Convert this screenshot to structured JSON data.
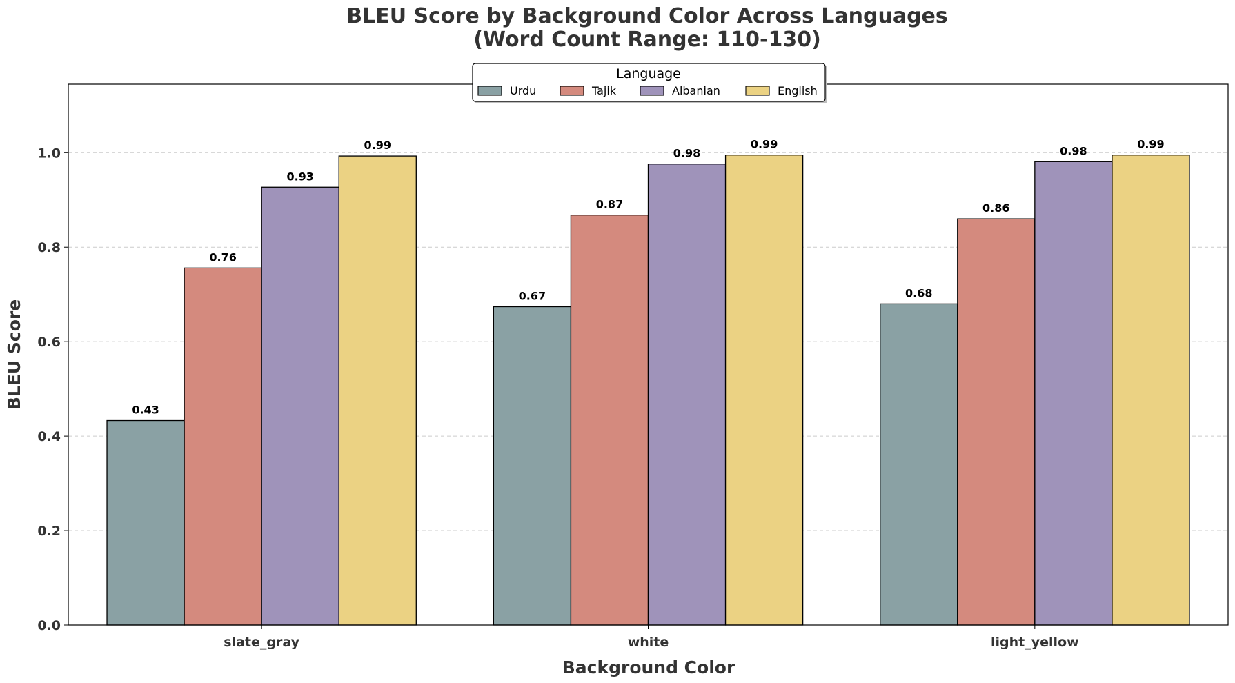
{
  "chart_data": {
    "type": "bar",
    "title_lines": [
      "BLEU Score by Background Color Across Languages",
      "(Word Count Range: 110-130)"
    ],
    "xlabel": "Background Color",
    "ylabel": "BLEU Score",
    "categories": [
      "slate_gray",
      "white",
      "light_yellow"
    ],
    "ylim": [
      0,
      1.145
    ],
    "yticks": [
      "0.0",
      "0.2",
      "0.4",
      "0.6",
      "0.8",
      "1.0"
    ],
    "grid": true,
    "legend": {
      "title": "Language",
      "placement": "top-center",
      "columns": 4
    },
    "series": [
      {
        "name": "Urdu",
        "color": "#8aa1a4",
        "values": [
          0.433,
          0.674,
          0.68
        ],
        "labels": [
          "0.43",
          "0.67",
          "0.68"
        ]
      },
      {
        "name": "Tajik",
        "color": "#d48a7e",
        "values": [
          0.756,
          0.868,
          0.86
        ],
        "labels": [
          "0.76",
          "0.87",
          "0.86"
        ]
      },
      {
        "name": "Albanian",
        "color": "#9f93ba",
        "values": [
          0.927,
          0.976,
          0.981
        ],
        "labels": [
          "0.93",
          "0.98",
          "0.98"
        ]
      },
      {
        "name": "English",
        "color": "#ebd283",
        "values": [
          0.993,
          0.995,
          0.995
        ],
        "labels": [
          "0.99",
          "0.99",
          "0.99"
        ]
      }
    ]
  }
}
